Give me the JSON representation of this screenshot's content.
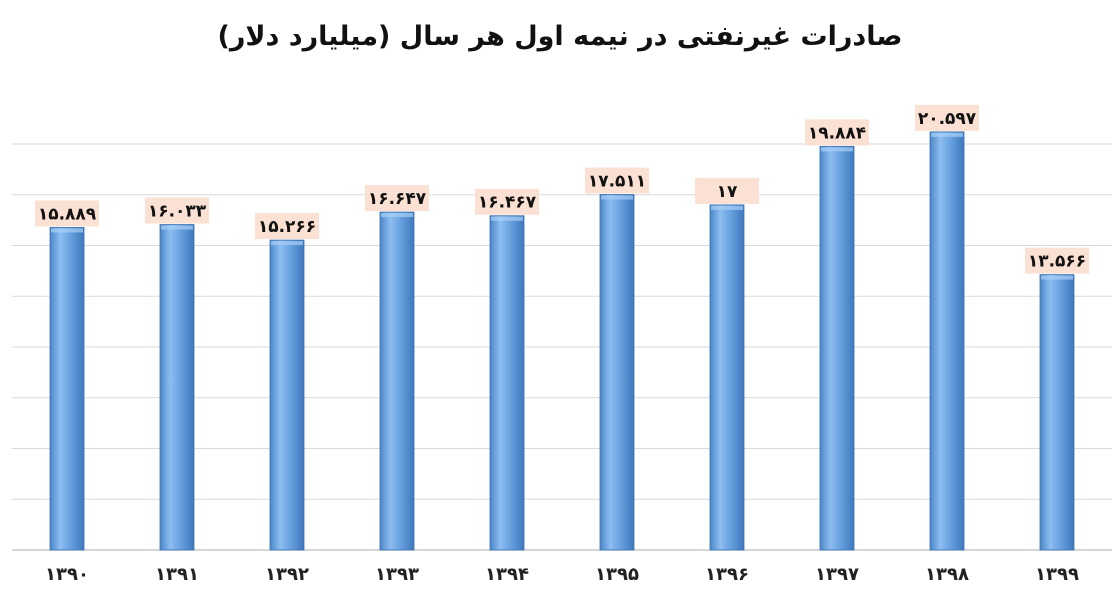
{
  "chart_data": {
    "type": "bar",
    "title": "صادرات غیرنفتی در نیمه اول هر سال (میلیارد دلار)",
    "categories": [
      "۱۳۹۰",
      "۱۳۹۱",
      "۱۳۹۲",
      "۱۳۹۳",
      "۱۳۹۴",
      "۱۳۹۵",
      "۱۳۹۶",
      "۱۳۹۷",
      "۱۳۹۸",
      "۱۳۹۹"
    ],
    "values": [
      15.889,
      16.033,
      15.266,
      16.647,
      16.467,
      17.511,
      17,
      19.884,
      20.597,
      13.566
    ],
    "data_labels": [
      "۱۵.۸۸۹",
      "۱۶.۰۳۳",
      "۱۵.۲۶۶",
      "۱۶.۶۴۷",
      "۱۶.۴۶۷",
      "۱۷.۵۱۱",
      "۱۷",
      "۱۹.۸۸۴",
      "۲۰.۵۹۷",
      "۱۳.۵۶۶"
    ],
    "ylim": [
      0,
      22
    ],
    "grid": true,
    "bar_color": "#5b9bd5",
    "label_bg_color": "#fbe1d3"
  }
}
